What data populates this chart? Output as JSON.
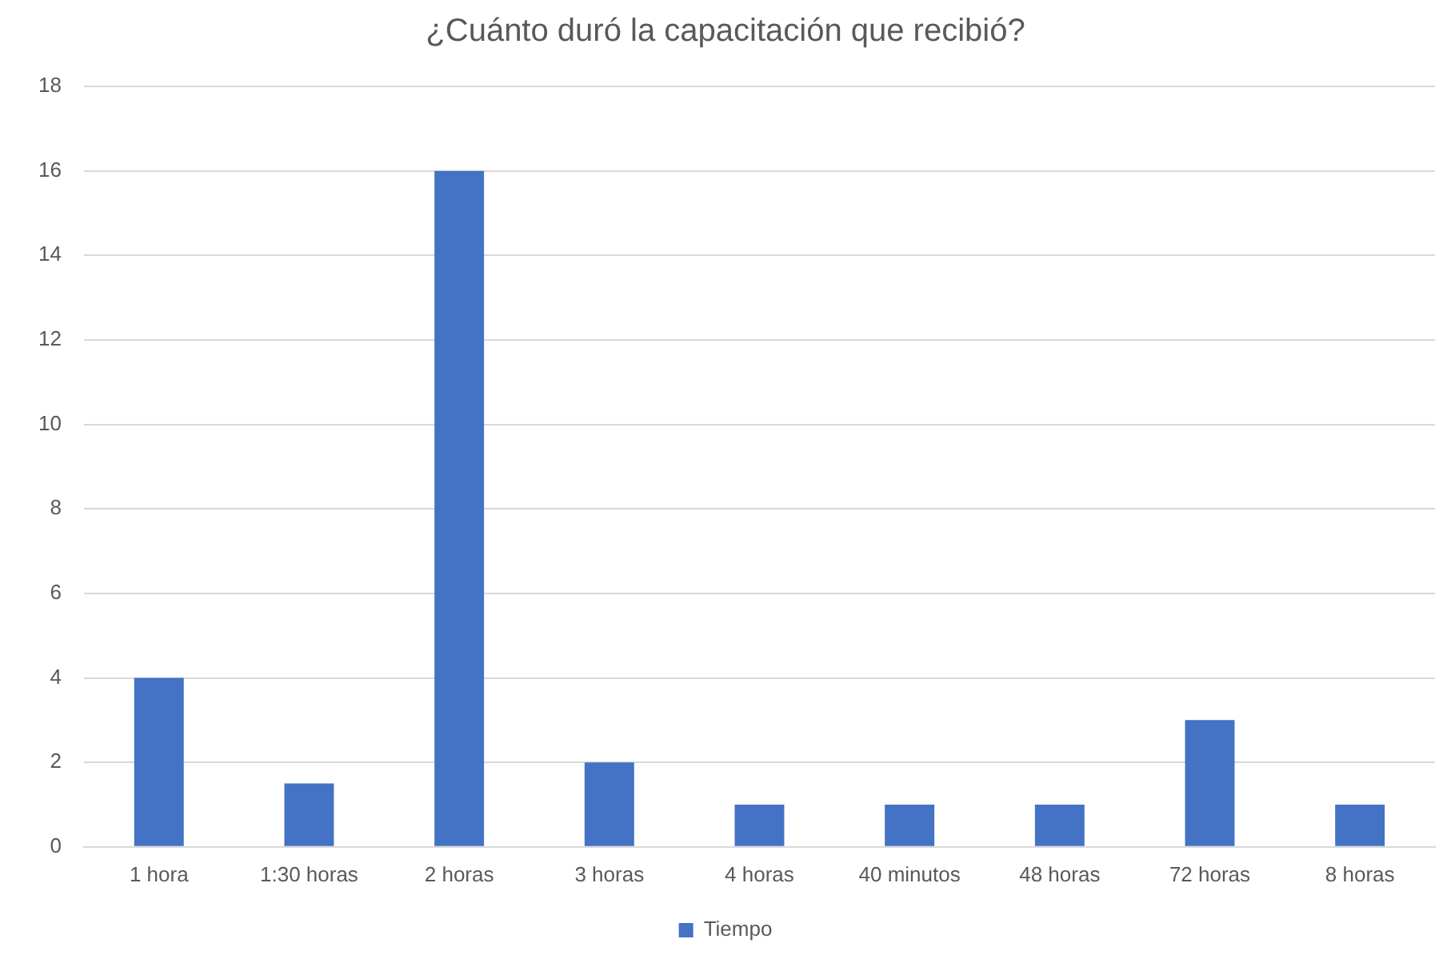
{
  "chart_data": {
    "type": "bar",
    "title": "¿Cuánto duró la capacitación que recibió?",
    "categories": [
      "1 hora",
      "1:30 horas",
      "2 horas",
      "3 horas",
      "4 horas",
      "40 minutos",
      "48 horas",
      "72 horas",
      "8 horas"
    ],
    "series": [
      {
        "name": "Tiempo",
        "color": "#4472c4",
        "values": [
          4,
          1.5,
          16,
          2,
          1,
          1,
          1,
          3,
          1
        ]
      }
    ],
    "ylim": [
      0,
      18
    ],
    "yticks": [
      0,
      2,
      4,
      6,
      8,
      10,
      12,
      14,
      16,
      18
    ],
    "grid": "y",
    "legend": "bottom"
  }
}
